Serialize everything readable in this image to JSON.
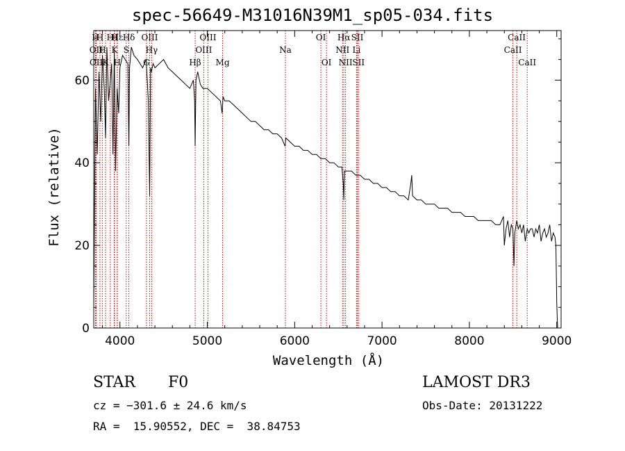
{
  "chart_data": {
    "type": "line",
    "title": "spec-56649-M31016N39M1_sp05-034.fits",
    "xlabel": "Wavelength (Å)",
    "ylabel": "Flux (relative)",
    "xlim": [
      3700,
      9050
    ],
    "ylim": [
      0,
      72
    ],
    "xticks": [
      4000,
      5000,
      6000,
      7000,
      8000,
      9000
    ],
    "yticks": [
      0,
      20,
      40,
      60
    ],
    "series": [
      {
        "name": "spectrum",
        "x": [
          3700,
          3720,
          3740,
          3760,
          3780,
          3800,
          3820,
          3835,
          3850,
          3870,
          3890,
          3905,
          3920,
          3935,
          3950,
          3968,
          3985,
          4000,
          4030,
          4060,
          4090,
          4102,
          4110,
          4130,
          4160,
          4200,
          4230,
          4260,
          4300,
          4325,
          4340,
          4350,
          4360,
          4380,
          4400,
          4450,
          4500,
          4550,
          4600,
          4650,
          4700,
          4750,
          4800,
          4840,
          4855,
          4861,
          4870,
          4890,
          4920,
          4950,
          5000,
          5050,
          5100,
          5150,
          5170,
          5180,
          5200,
          5250,
          5300,
          5350,
          5400,
          5450,
          5500,
          5550,
          5600,
          5650,
          5700,
          5750,
          5800,
          5850,
          5890,
          5900,
          5950,
          6000,
          6050,
          6100,
          6150,
          6200,
          6250,
          6300,
          6350,
          6400,
          6450,
          6500,
          6540,
          6556,
          6563,
          6570,
          6590,
          6620,
          6650,
          6700,
          6750,
          6800,
          6850,
          6900,
          6950,
          7000,
          7050,
          7100,
          7150,
          7200,
          7250,
          7300,
          7330,
          7340,
          7350,
          7400,
          7450,
          7500,
          7550,
          7600,
          7650,
          7700,
          7750,
          7800,
          7850,
          7900,
          7950,
          8000,
          8050,
          8100,
          8150,
          8200,
          8250,
          8300,
          8350,
          8390,
          8400,
          8420,
          8440,
          8460,
          8480,
          8498,
          8510,
          8520,
          8542,
          8560,
          8580,
          8600,
          8620,
          8640,
          8662,
          8680,
          8700,
          8720,
          8740,
          8760,
          8780,
          8800,
          8820,
          8840,
          8860,
          8880,
          8900,
          8920,
          8940,
          8960,
          8980,
          8990,
          9000,
          9010,
          9020
        ],
        "values": [
          5,
          58,
          42,
          62,
          50,
          66,
          58,
          46,
          68,
          55,
          60,
          64,
          42,
          67,
          38,
          58,
          52,
          63,
          66,
          65,
          64,
          44,
          63,
          68,
          66,
          65,
          64,
          63,
          65,
          55,
          32,
          63,
          62,
          64,
          63,
          64,
          65,
          63,
          62,
          61,
          60,
          59,
          58,
          60,
          55,
          44,
          60,
          62,
          59,
          58,
          58,
          57,
          56,
          55,
          52,
          56,
          55,
          55,
          54,
          53,
          52,
          51,
          50,
          50,
          49,
          48,
          48,
          47,
          47,
          46,
          44,
          46,
          45,
          44,
          44,
          43,
          43,
          42,
          42,
          41,
          41,
          40,
          40,
          39,
          39,
          35,
          31,
          38,
          38,
          38,
          38,
          37,
          37,
          36,
          36,
          35,
          35,
          34,
          34,
          33,
          33,
          32,
          32,
          31,
          35,
          37,
          32,
          31,
          31,
          30,
          30,
          30,
          29,
          29,
          29,
          28,
          28,
          28,
          27,
          27,
          27,
          26,
          26,
          26,
          26,
          25,
          25,
          27,
          20,
          24,
          26,
          22,
          25,
          24,
          15,
          23,
          26,
          24,
          25,
          23,
          25,
          21,
          24,
          23,
          24,
          24,
          22,
          24,
          23,
          25,
          21,
          23,
          24,
          22,
          23,
          25,
          21,
          23,
          22,
          20,
          6,
          0,
          0
        ]
      }
    ],
    "lines": [
      {
        "label": "H",
        "wl": 3720,
        "row": 0
      },
      {
        "label": "OII",
        "wl": 3727,
        "row": 1
      },
      {
        "label": "OII",
        "wl": 3729,
        "row": 2
      },
      {
        "label": "H",
        "wl": 3771,
        "row": 0
      },
      {
        "label": "H",
        "wl": 3798,
        "row": 1
      },
      {
        "label": "K",
        "wl": 3835,
        "row": 2
      },
      {
        "label": "H",
        "wl": 3889,
        "row": 0
      },
      {
        "label": "H",
        "wl": 3934,
        "row": 0
      },
      {
        "label": "K",
        "wl": 3938,
        "row": 1
      },
      {
        "label": "H",
        "wl": 3968,
        "row": 2
      },
      {
        "label": "Hε",
        "wl": 3970,
        "row": 0
      },
      {
        "label": "S",
        "wl": 4072,
        "row": 1
      },
      {
        "label": "Hδ",
        "wl": 4102,
        "row": 0
      },
      {
        "label": "G",
        "wl": 4304,
        "row": 2
      },
      {
        "label": "OIII",
        "wl": 4340,
        "row": 0
      },
      {
        "label": "Hγ",
        "wl": 4363,
        "row": 1
      },
      {
        "label": "Hβ",
        "wl": 4861,
        "row": 2
      },
      {
        "label": "OIII",
        "wl": 4959,
        "row": 1
      },
      {
        "label": "OIII",
        "wl": 5007,
        "row": 0
      },
      {
        "label": "Mg",
        "wl": 5175,
        "row": 2
      },
      {
        "label": "Na",
        "wl": 5894,
        "row": 1
      },
      {
        "label": "OI",
        "wl": 6300,
        "row": 0
      },
      {
        "label": "OI",
        "wl": 6364,
        "row": 2
      },
      {
        "label": "NII",
        "wl": 6548,
        "row": 1
      },
      {
        "label": "Hα",
        "wl": 6563,
        "row": 0
      },
      {
        "label": "NII",
        "wl": 6583,
        "row": 2
      },
      {
        "label": "Li",
        "wl": 6708,
        "row": 1
      },
      {
        "label": "SII",
        "wl": 6717,
        "row": 0
      },
      {
        "label": "SII",
        "wl": 6731,
        "row": 2
      },
      {
        "label": "CaII",
        "wl": 8498,
        "row": 1
      },
      {
        "label": "CaII",
        "wl": 8542,
        "row": 0
      },
      {
        "label": "CaII",
        "wl": 8662,
        "row": 2
      }
    ]
  },
  "info": {
    "object_type": "STAR",
    "subclass": "F0",
    "survey": "LAMOST DR3",
    "cz": "cz = −301.6 ± 24.6 km/s",
    "obs_date": "Obs-Date: 20131222",
    "coords": "RA =  15.90552, DEC =  38.84753"
  }
}
